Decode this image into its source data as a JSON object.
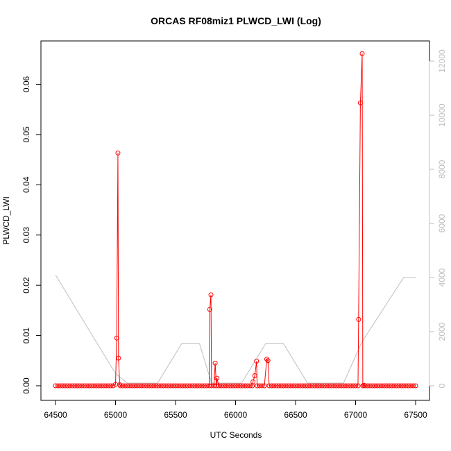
{
  "chart_data": {
    "type": "line",
    "title": "ORCAS RF08miz1 PLWCD_LWI (Log)",
    "xlabel": "UTC Seconds",
    "ylabel": "PLWCD_LWI",
    "xlim": [
      64500,
      67500
    ],
    "ylim": [
      0,
      0.066
    ],
    "y2lim": [
      0,
      12000
    ],
    "x_ticks": [
      64500,
      65000,
      65500,
      66000,
      66500,
      67000,
      67500
    ],
    "x_tick_labels": [
      "64500",
      "65000",
      "65500",
      "66000",
      "66500",
      "67000",
      "67500"
    ],
    "y_ticks": [
      0,
      0.01,
      0.02,
      0.03,
      0.04,
      0.05,
      0.06
    ],
    "y_tick_labels": [
      "0.00",
      "0.01",
      "0.02",
      "0.03",
      "0.04",
      "0.05",
      "0.06"
    ],
    "y2_ticks": [
      0,
      2000,
      4000,
      6000,
      8000,
      10000,
      12000
    ],
    "y2_tick_labels": [
      "0",
      "2000",
      "4000",
      "6000",
      "8000",
      "10000",
      "12000"
    ],
    "grid": false,
    "colors": {
      "primary": "#ff0000",
      "secondary": "#bebebe",
      "axis": "#000000"
    },
    "series": [
      {
        "axis": "left",
        "marker": "open-circle",
        "baseline_range": [
          64500,
          67500
        ],
        "baseline_step": 20,
        "baseline_value": 0.0,
        "points": [
          [
            65000,
            0.0003
          ],
          [
            65010,
            0.0095
          ],
          [
            65020,
            0.0463
          ],
          [
            65025,
            0.0055
          ],
          [
            65035,
            0.0002
          ],
          [
            65785,
            0.0152
          ],
          [
            65795,
            0.0181
          ],
          [
            65830,
            0.0045
          ],
          [
            65845,
            0.0015
          ],
          [
            66145,
            0.0008
          ],
          [
            66160,
            0.002
          ],
          [
            66175,
            0.0049
          ],
          [
            66260,
            0.0053
          ],
          [
            66270,
            0.005
          ],
          [
            67025,
            0.0132
          ],
          [
            67040,
            0.0563
          ],
          [
            67055,
            0.0661
          ],
          [
            67070,
            0.0001
          ]
        ]
      },
      {
        "axis": "right",
        "marker": "none",
        "points": [
          [
            64500,
            4100
          ],
          [
            65000,
            450
          ],
          [
            65100,
            100
          ],
          [
            65350,
            100
          ],
          [
            65550,
            1550
          ],
          [
            65700,
            1550
          ],
          [
            65800,
            100
          ],
          [
            66050,
            100
          ],
          [
            66250,
            1550
          ],
          [
            66400,
            1550
          ],
          [
            66600,
            100
          ],
          [
            66900,
            100
          ],
          [
            67050,
            1600
          ],
          [
            67400,
            4000
          ],
          [
            67500,
            4000
          ]
        ]
      }
    ]
  }
}
